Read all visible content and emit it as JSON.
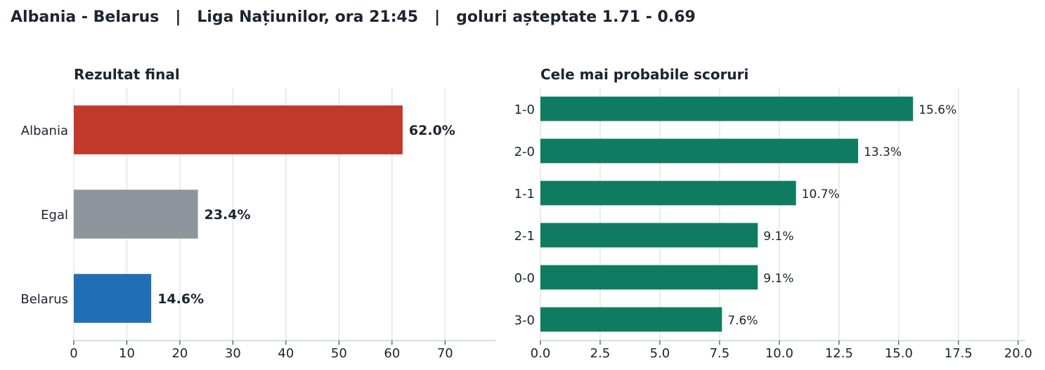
{
  "page": {
    "title": "Albania - Belarus   |   Liga Națiunilor, ora 21:45   |   goluri așteptate 1.71 - 0.69"
  },
  "chart_data": [
    {
      "type": "bar",
      "orientation": "horizontal",
      "title": "Rezultat final",
      "categories": [
        "Albania",
        "Egal",
        "Belarus"
      ],
      "values": [
        62.0,
        23.4,
        14.6
      ],
      "data_labels": [
        "62.0%",
        "23.4%",
        "14.6%"
      ],
      "colors": [
        "#c0392b",
        "#8e959c",
        "#206fb6"
      ],
      "xlim": [
        0,
        79.5
      ],
      "xticks": [
        0,
        10,
        20,
        30,
        40,
        50,
        60,
        70
      ],
      "xtick_labels": [
        "0",
        "10",
        "20",
        "30",
        "40",
        "50",
        "60",
        "70"
      ],
      "grid": "vertical",
      "legend": "none"
    },
    {
      "type": "bar",
      "orientation": "horizontal",
      "title": "Cele mai probabile scoruri",
      "categories": [
        "1-0",
        "2-0",
        "1-1",
        "2-1",
        "0-0",
        "3-0"
      ],
      "values": [
        15.6,
        13.3,
        10.7,
        9.1,
        9.1,
        7.6
      ],
      "data_labels": [
        "15.6%",
        "13.3%",
        "10.7%",
        "9.1%",
        "9.1%",
        "7.6%"
      ],
      "colors": [
        "#0f7c61"
      ],
      "xlim": [
        0,
        20.3
      ],
      "xticks": [
        0,
        2.5,
        5,
        7.5,
        10,
        12.5,
        15,
        17.5,
        20
      ],
      "xtick_labels": [
        "0.0",
        "2.5",
        "5.0",
        "7.5",
        "10.0",
        "12.5",
        "15.0",
        "17.5",
        "20.0"
      ],
      "grid": "vertical",
      "legend": "none"
    }
  ]
}
